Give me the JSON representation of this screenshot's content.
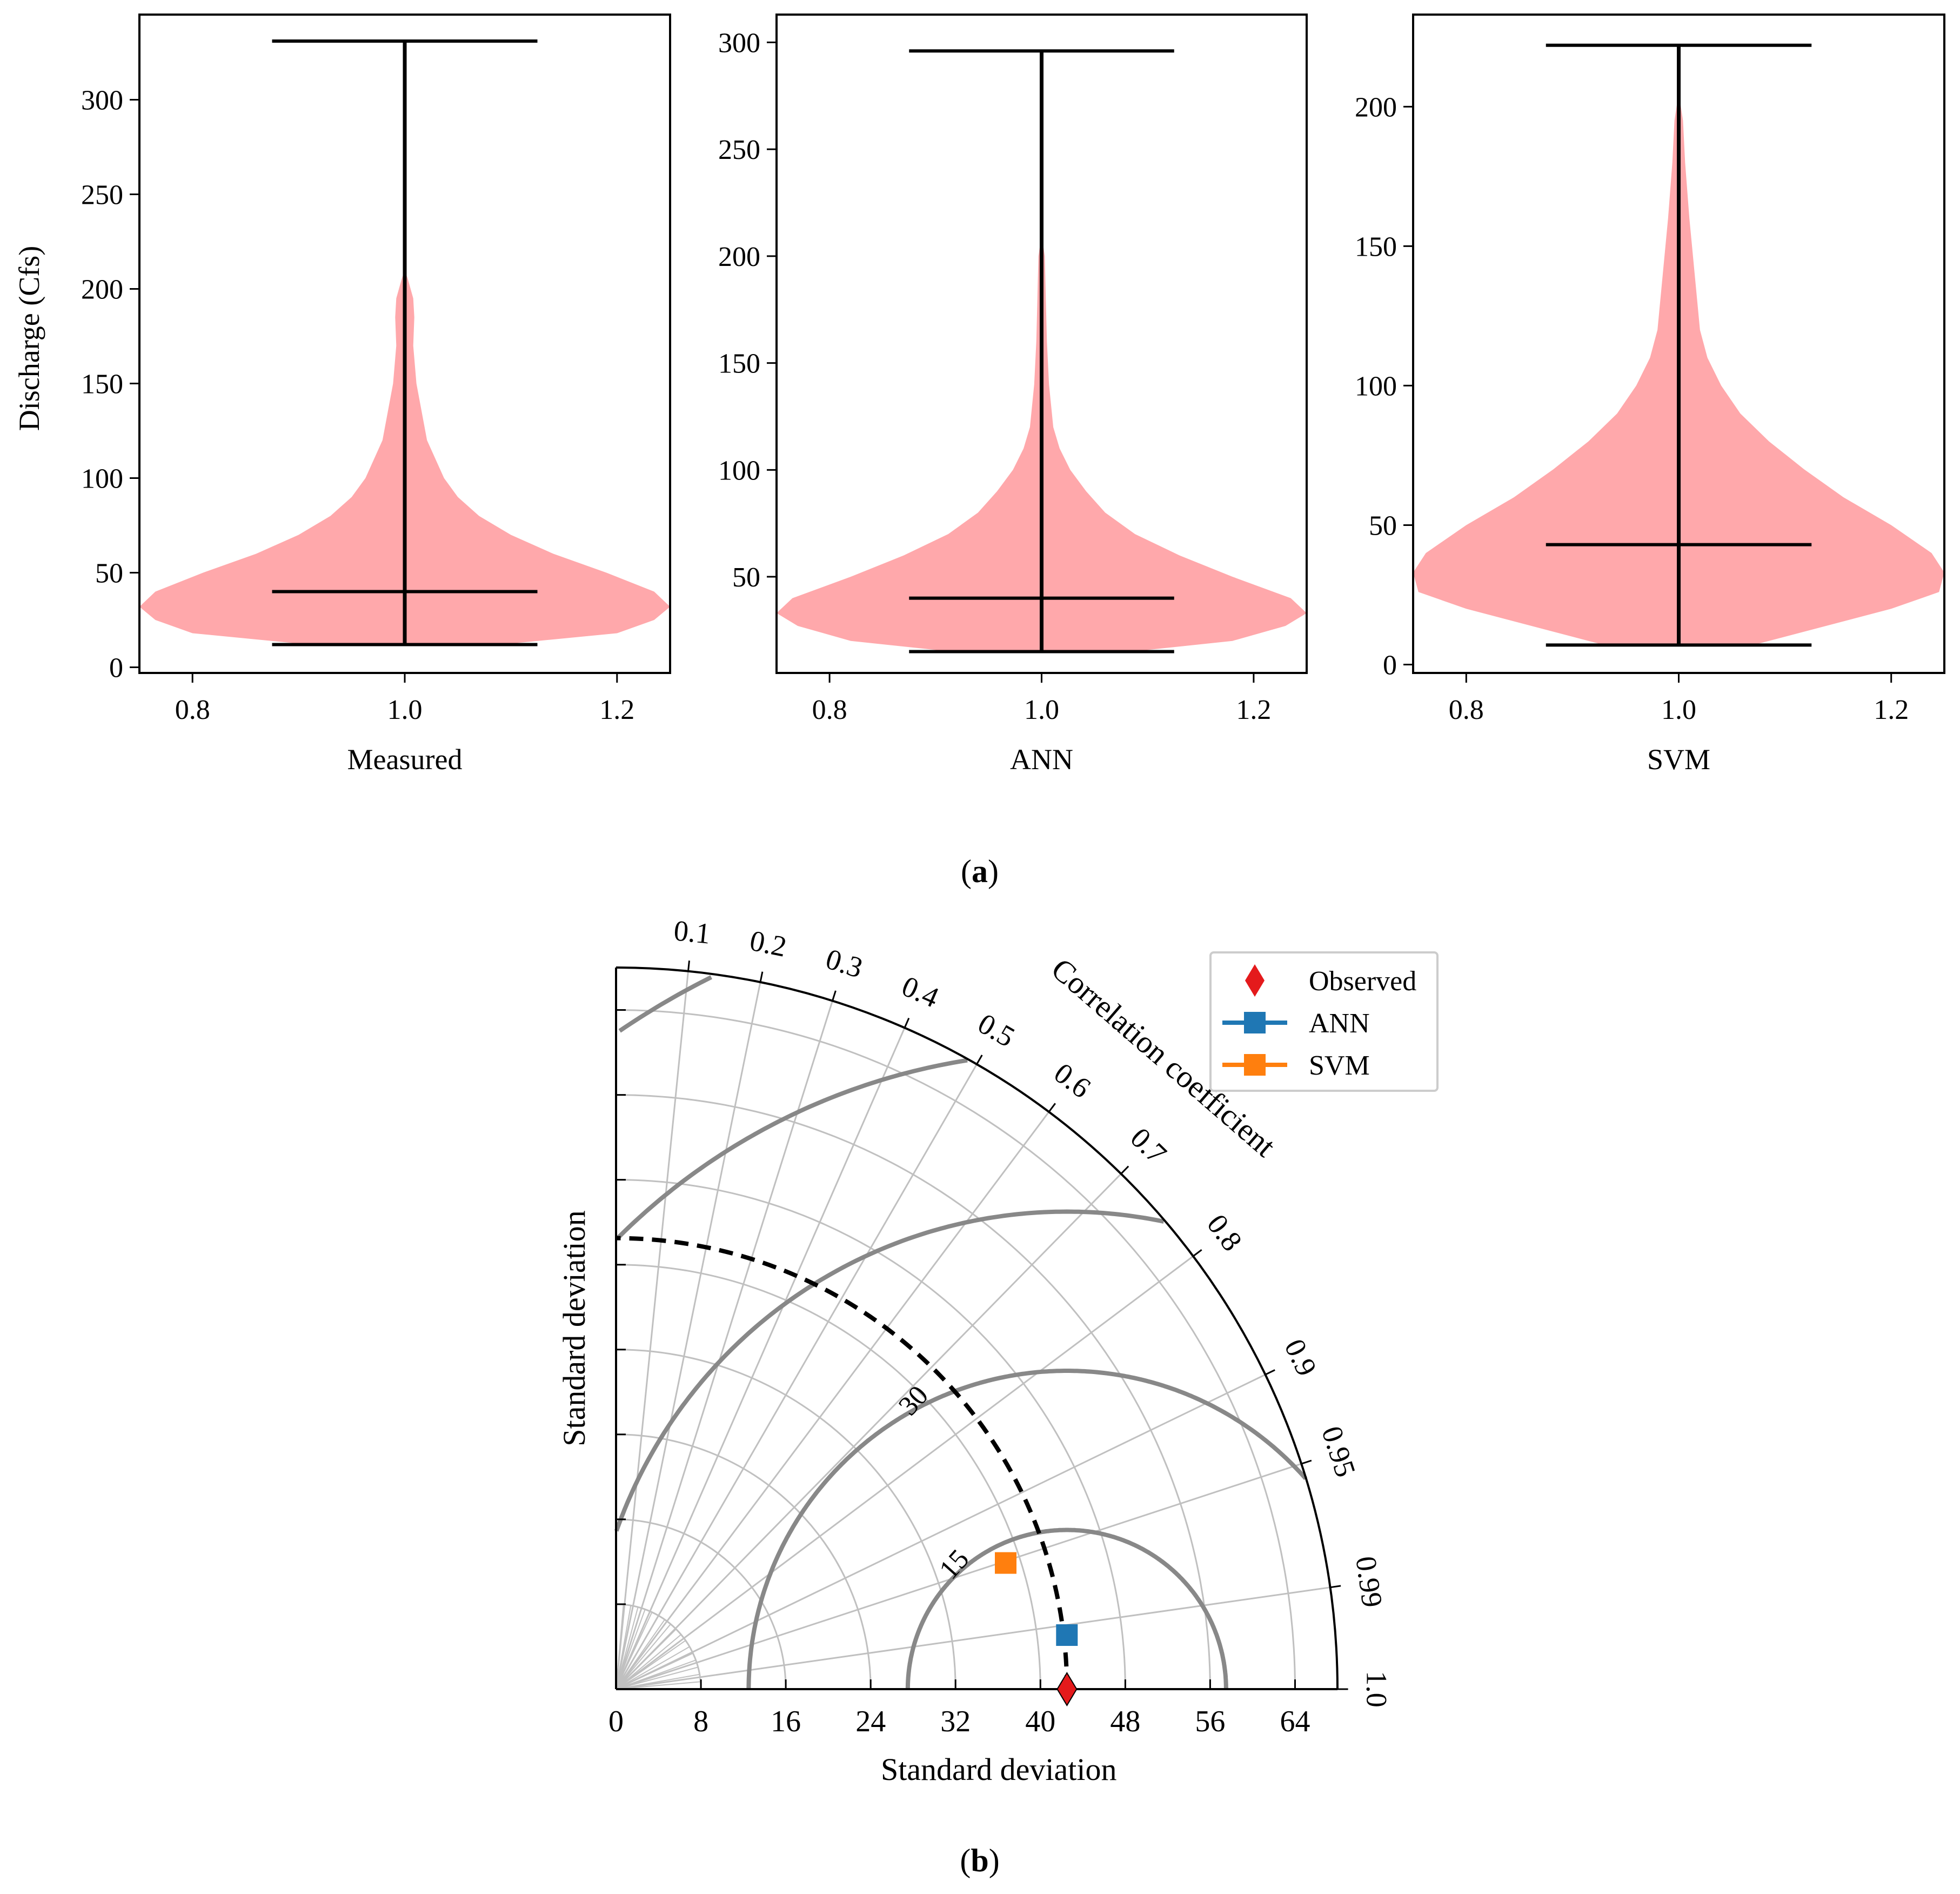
{
  "panel_a": {
    "caption_letter": "a"
  },
  "panel_b": {
    "caption_letter": "b"
  },
  "colors": {
    "violin_fill": "#ffa8ab",
    "line": "#000000",
    "grid": "#c0c0c0",
    "rms_contour": "#888888",
    "ref_arc": "#000000",
    "observed": "#e41a1c",
    "ann": "#1f77b4",
    "svm": "#ff7f0e"
  },
  "chart_data": [
    {
      "type": "violin",
      "title": "",
      "xlabel": "Measured",
      "ylabel": "Discharge (Cfs)",
      "xlim": [
        0.75,
        1.25
      ],
      "ylim": [
        -3,
        345
      ],
      "xticks": [
        0.8,
        1.0,
        1.2
      ],
      "xtick_labels": [
        "0.8",
        "1.0",
        "1.2"
      ],
      "yticks": [
        0,
        50,
        100,
        150,
        200,
        250,
        300
      ],
      "ytick_labels": [
        "0",
        "50",
        "100",
        "150",
        "200",
        "250",
        "300"
      ],
      "position": 1.0,
      "stats": {
        "min": 12,
        "median": 40,
        "max": 331
      },
      "density_halfwidth": [
        [
          12,
          0.09
        ],
        [
          18,
          0.2
        ],
        [
          25,
          0.235
        ],
        [
          32,
          0.25
        ],
        [
          40,
          0.235
        ],
        [
          50,
          0.19
        ],
        [
          60,
          0.14
        ],
        [
          70,
          0.1
        ],
        [
          80,
          0.07
        ],
        [
          90,
          0.05
        ],
        [
          100,
          0.037
        ],
        [
          120,
          0.021
        ],
        [
          150,
          0.011
        ],
        [
          170,
          0.008
        ],
        [
          185,
          0.009
        ],
        [
          195,
          0.008
        ],
        [
          205,
          0.003
        ],
        [
          210,
          0
        ]
      ]
    },
    {
      "type": "violin",
      "title": "",
      "xlabel": "ANN",
      "ylabel": "",
      "xlim": [
        0.75,
        1.25
      ],
      "ylim": [
        5,
        313
      ],
      "xticks": [
        0.8,
        1.0,
        1.2
      ],
      "xtick_labels": [
        "0.8",
        "1.0",
        "1.2"
      ],
      "yticks": [
        50,
        100,
        150,
        200,
        250,
        300
      ],
      "ytick_labels": [
        "50",
        "100",
        "150",
        "200",
        "250",
        "300"
      ],
      "position": 1.0,
      "stats": {
        "min": 15,
        "median": 40,
        "max": 296
      },
      "density_halfwidth": [
        [
          15,
          0.085
        ],
        [
          20,
          0.18
        ],
        [
          27,
          0.23
        ],
        [
          33,
          0.25
        ],
        [
          40,
          0.235
        ],
        [
          50,
          0.18
        ],
        [
          60,
          0.13
        ],
        [
          70,
          0.088
        ],
        [
          80,
          0.06
        ],
        [
          90,
          0.042
        ],
        [
          100,
          0.027
        ],
        [
          110,
          0.017
        ],
        [
          120,
          0.011
        ],
        [
          140,
          0.007
        ],
        [
          160,
          0.005
        ],
        [
          180,
          0.004
        ],
        [
          200,
          0.003
        ],
        [
          210,
          0
        ]
      ]
    },
    {
      "type": "violin",
      "title": "",
      "xlabel": "SVM",
      "ylabel": "",
      "xlim": [
        0.75,
        1.25
      ],
      "ylim": [
        -3,
        233
      ],
      "xticks": [
        0.8,
        1.0,
        1.2
      ],
      "xtick_labels": [
        "0.8",
        "1.0",
        "1.2"
      ],
      "yticks": [
        0,
        50,
        100,
        150,
        200
      ],
      "ytick_labels": [
        "0",
        "50",
        "100",
        "150",
        "200"
      ],
      "position": 1.0,
      "stats": {
        "min": 7,
        "median": 43,
        "max": 222
      },
      "density_halfwidth": [
        [
          7,
          0.07
        ],
        [
          12,
          0.12
        ],
        [
          20,
          0.2
        ],
        [
          26,
          0.245
        ],
        [
          33,
          0.25
        ],
        [
          40,
          0.238
        ],
        [
          50,
          0.2
        ],
        [
          60,
          0.155
        ],
        [
          70,
          0.118
        ],
        [
          80,
          0.085
        ],
        [
          90,
          0.058
        ],
        [
          100,
          0.04
        ],
        [
          110,
          0.027
        ],
        [
          120,
          0.02
        ],
        [
          140,
          0.015
        ],
        [
          160,
          0.01
        ],
        [
          180,
          0.006
        ],
        [
          195,
          0.004
        ],
        [
          205,
          0
        ]
      ]
    },
    {
      "type": "taylor",
      "title": "",
      "xlabel": "Standard deviation",
      "ylabel": "Standard deviation",
      "angle_label": "Correlation coefficient",
      "std_max": 68,
      "std_ticks": [
        0,
        8,
        16,
        24,
        32,
        40,
        48,
        56,
        64
      ],
      "std_tick_labels": [
        "0",
        "8",
        "16",
        "24",
        "32",
        "40",
        "48",
        "56",
        "64"
      ],
      "corr_ticks": [
        0.1,
        0.2,
        0.3,
        0.4,
        0.5,
        0.6,
        0.7,
        0.8,
        0.9,
        0.95,
        0.99,
        1.0
      ],
      "corr_tick_labels": [
        "0.1",
        "0.2",
        "0.3",
        "0.4",
        "0.5",
        "0.6",
        "0.7",
        "0.8",
        "0.9",
        "0.95",
        "0.99",
        "1.0"
      ],
      "reference_std": 42.5,
      "rms_contours": [
        15,
        30,
        45,
        60,
        75
      ],
      "rms_contour_labels": [
        {
          "value": 15,
          "text": "15"
        },
        {
          "value": 30,
          "text": "30"
        }
      ],
      "points": [
        {
          "name": "Observed",
          "std": 42.5,
          "corr": 1.0,
          "marker": "diamond",
          "color": "#e41a1c"
        },
        {
          "name": "ANN",
          "std": 42.8,
          "corr": 0.9929,
          "marker": "square",
          "color": "#1f77b4"
        },
        {
          "name": "SVM",
          "std": 38.6,
          "corr": 0.9514,
          "marker": "square",
          "color": "#ff7f0e"
        }
      ],
      "legend": [
        "Observed",
        "ANN",
        "SVM"
      ],
      "legend_loc": "upper-right"
    }
  ]
}
